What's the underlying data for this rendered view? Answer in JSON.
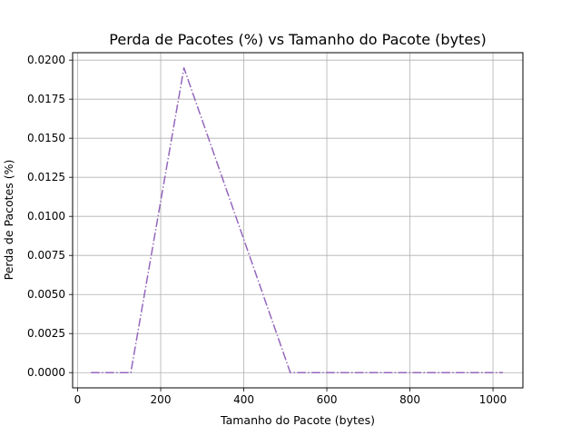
{
  "chart_data": {
    "type": "line",
    "title": "Perda de Pacotes (%) vs Tamanho do Pacote (bytes)",
    "xlabel": "Tamanho do Pacote (bytes)",
    "ylabel": "Perda de Pacotes (%)",
    "xlim": [
      -12,
      1072
    ],
    "ylim": [
      -0.000975,
      0.020475
    ],
    "xticks": [
      0,
      200,
      400,
      600,
      800,
      1000
    ],
    "xtick_labels": [
      "0",
      "200",
      "400",
      "600",
      "800",
      "1000"
    ],
    "yticks": [
      0.0,
      0.0025,
      0.005,
      0.0075,
      0.01,
      0.0125,
      0.015,
      0.0175,
      0.02
    ],
    "ytick_labels": [
      "0.0000",
      "0.0025",
      "0.0050",
      "0.0075",
      "0.0100",
      "0.0125",
      "0.0150",
      "0.0175",
      "0.0200"
    ],
    "grid": true,
    "series": [
      {
        "color": "#9467bd",
        "linestyle": "dashdot",
        "x": [
          32,
          128,
          256,
          512,
          1024
        ],
        "y": [
          0.0,
          0.0,
          0.0195,
          0.0,
          0.0
        ]
      }
    ]
  }
}
